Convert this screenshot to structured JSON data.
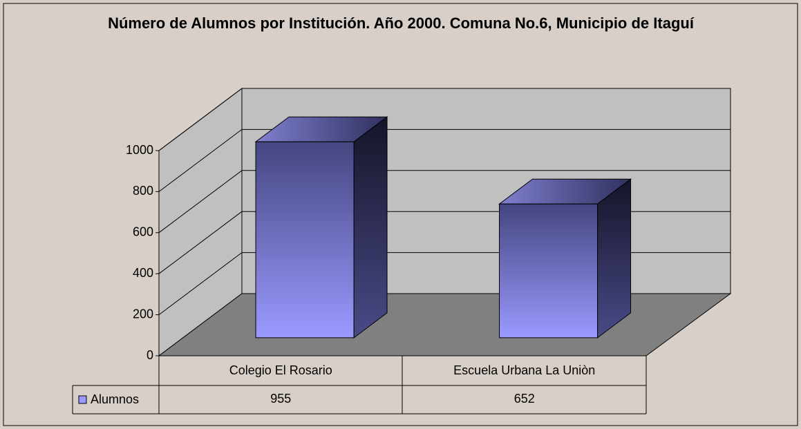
{
  "chart_data": {
    "type": "bar3d",
    "title": "Número de Alumnos por Institución. Año 2000. Comuna No.6, Municipio de Itaguí",
    "categories": [
      "Colegio El Rosario",
      "Escuela Urbana La Uniòn"
    ],
    "series": [
      {
        "name": "Alumnos",
        "color": "#9999ff",
        "values": [
          955,
          652
        ]
      }
    ],
    "ylim": [
      0,
      1000
    ],
    "yticks": [
      0,
      200,
      400,
      600,
      800,
      1000
    ],
    "grid": true,
    "legend": "table"
  }
}
